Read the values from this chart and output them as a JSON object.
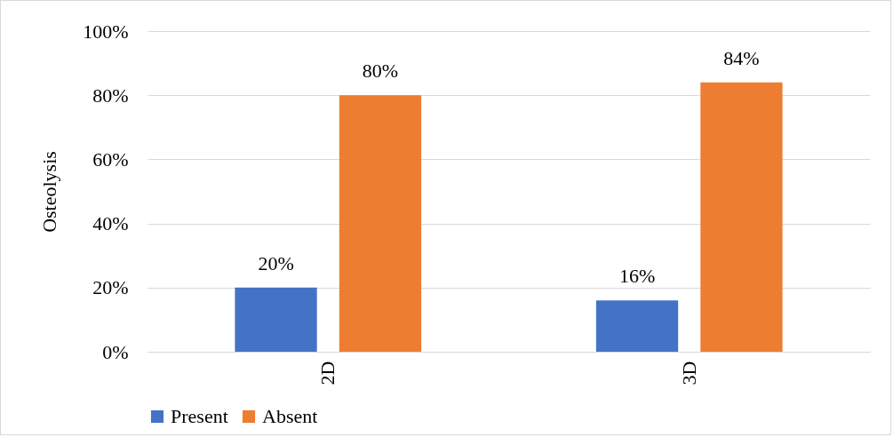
{
  "chart_data": {
    "type": "bar",
    "ylabel": "Osteolysis",
    "categories": [
      "2D",
      "3D"
    ],
    "series": [
      {
        "name": "Present",
        "color": "#4472c4",
        "values": [
          20,
          16
        ],
        "value_labels": [
          "20%",
          "16%"
        ]
      },
      {
        "name": "Absent",
        "color": "#ed7d31",
        "values": [
          80,
          84
        ],
        "value_labels": [
          "80%",
          "84%"
        ]
      }
    ],
    "ylim": [
      0,
      100
    ],
    "yticks": [
      {
        "value": 0,
        "label": "0%"
      },
      {
        "value": 20,
        "label": "20%"
      },
      {
        "value": 40,
        "label": "40%"
      },
      {
        "value": 60,
        "label": "60%"
      },
      {
        "value": 80,
        "label": "80%"
      },
      {
        "value": 100,
        "label": "100%"
      }
    ],
    "grid": true,
    "legend": "bottom"
  }
}
